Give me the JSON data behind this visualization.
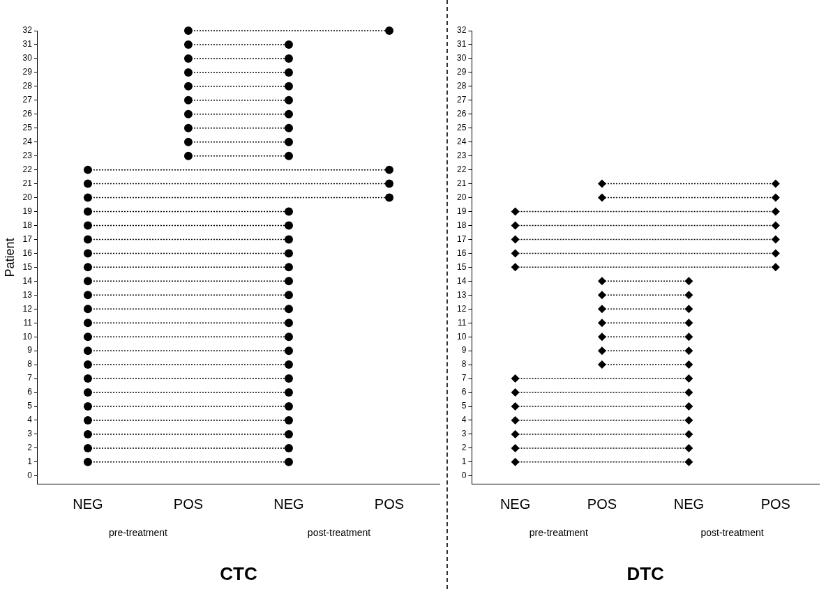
{
  "chart_data": [
    {
      "type": "line",
      "ylabel": "Patient",
      "xlabel": "CTC",
      "annotations": [
        "pre-treatment",
        "post-treatment"
      ],
      "line_style": "dotted",
      "marker": "circle",
      "categories": [
        "NEG",
        "POS",
        "NEG",
        "POS"
      ],
      "ylim": [
        -0.6,
        32
      ],
      "yticks": [
        0,
        1,
        2,
        3,
        4,
        5,
        6,
        7,
        8,
        9,
        10,
        11,
        12,
        13,
        14,
        15,
        16,
        17,
        18,
        19,
        20,
        21,
        22,
        23,
        24,
        25,
        26,
        27,
        28,
        29,
        30,
        31,
        32
      ],
      "series": [
        {
          "color": "#000000",
          "values": [
            1,
            null,
            1,
            null
          ]
        },
        {
          "color": "#000000",
          "values": [
            2,
            null,
            2,
            null
          ]
        },
        {
          "color": "#000000",
          "values": [
            3,
            null,
            3,
            null
          ]
        },
        {
          "color": "#000000",
          "values": [
            4,
            null,
            4,
            null
          ]
        },
        {
          "color": "#000000",
          "values": [
            5,
            null,
            5,
            null
          ]
        },
        {
          "color": "#000000",
          "values": [
            6,
            null,
            6,
            null
          ]
        },
        {
          "color": "#000000",
          "values": [
            7,
            null,
            7,
            null
          ]
        },
        {
          "color": "#000000",
          "values": [
            8,
            null,
            8,
            null
          ]
        },
        {
          "color": "#000000",
          "values": [
            9,
            null,
            9,
            null
          ]
        },
        {
          "color": "#000000",
          "values": [
            10,
            null,
            10,
            null
          ]
        },
        {
          "color": "#000000",
          "values": [
            11,
            null,
            11,
            null
          ]
        },
        {
          "color": "#000000",
          "values": [
            12,
            null,
            12,
            null
          ]
        },
        {
          "color": "#000000",
          "values": [
            13,
            null,
            13,
            null
          ]
        },
        {
          "color": "#000000",
          "values": [
            14,
            null,
            14,
            null
          ]
        },
        {
          "color": "#000000",
          "values": [
            15,
            null,
            15,
            null
          ]
        },
        {
          "color": "#000000",
          "values": [
            16,
            null,
            16,
            null
          ]
        },
        {
          "color": "#000000",
          "values": [
            17,
            null,
            17,
            null
          ]
        },
        {
          "color": "#000000",
          "values": [
            18,
            null,
            18,
            null
          ]
        },
        {
          "color": "#000000",
          "values": [
            19,
            null,
            19,
            null
          ]
        },
        {
          "color": "#000000",
          "values": [
            20,
            null,
            null,
            20
          ]
        },
        {
          "color": "#000000",
          "values": [
            21,
            null,
            null,
            21
          ]
        },
        {
          "color": "#000000",
          "values": [
            22,
            null,
            null,
            22
          ]
        },
        {
          "color": "#000000",
          "values": [
            null,
            23,
            23,
            null
          ]
        },
        {
          "color": "#000000",
          "values": [
            null,
            24,
            24,
            null
          ]
        },
        {
          "color": "#000000",
          "values": [
            null,
            25,
            25,
            null
          ]
        },
        {
          "color": "#000000",
          "values": [
            null,
            26,
            26,
            null
          ]
        },
        {
          "color": "#000000",
          "values": [
            null,
            27,
            27,
            null
          ]
        },
        {
          "color": "#000000",
          "values": [
            null,
            28,
            28,
            null
          ]
        },
        {
          "color": "#000000",
          "values": [
            null,
            29,
            29,
            null
          ]
        },
        {
          "color": "#000000",
          "values": [
            null,
            30,
            30,
            null
          ]
        },
        {
          "color": "#000000",
          "values": [
            null,
            31,
            31,
            null
          ]
        },
        {
          "color": "#000000",
          "values": [
            null,
            32,
            null,
            32
          ]
        }
      ]
    },
    {
      "type": "line",
      "xlabel": "DTC",
      "annotations": [
        "pre-treatment",
        "post-treatment"
      ],
      "line_style": "dotted",
      "marker": "diamond",
      "categories": [
        "NEG",
        "POS",
        "NEG",
        "POS"
      ],
      "ylim": [
        -0.6,
        32
      ],
      "yticks": [
        0,
        1,
        2,
        3,
        4,
        5,
        6,
        7,
        8,
        9,
        10,
        11,
        12,
        13,
        14,
        15,
        16,
        17,
        18,
        19,
        20,
        21,
        22,
        23,
        24,
        25,
        26,
        27,
        28,
        29,
        30,
        31,
        32
      ],
      "series": [
        {
          "color": "#000000",
          "values": [
            1,
            null,
            1,
            null
          ]
        },
        {
          "color": "#000000",
          "values": [
            2,
            null,
            2,
            null
          ]
        },
        {
          "color": "#000000",
          "values": [
            3,
            null,
            3,
            null
          ]
        },
        {
          "color": "#000000",
          "values": [
            4,
            null,
            4,
            null
          ]
        },
        {
          "color": "#000000",
          "values": [
            5,
            null,
            5,
            null
          ]
        },
        {
          "color": "#000000",
          "values": [
            6,
            null,
            6,
            null
          ]
        },
        {
          "color": "#000000",
          "values": [
            7,
            null,
            7,
            null
          ]
        },
        {
          "color": "#000000",
          "values": [
            null,
            8,
            8,
            null
          ]
        },
        {
          "color": "#000000",
          "values": [
            null,
            9,
            9,
            null
          ]
        },
        {
          "color": "#000000",
          "values": [
            null,
            10,
            10,
            null
          ]
        },
        {
          "color": "#000000",
          "values": [
            null,
            11,
            11,
            null
          ]
        },
        {
          "color": "#000000",
          "values": [
            null,
            12,
            12,
            null
          ]
        },
        {
          "color": "#000000",
          "values": [
            null,
            13,
            13,
            null
          ]
        },
        {
          "color": "#000000",
          "values": [
            null,
            14,
            14,
            null
          ]
        },
        {
          "color": "#000000",
          "values": [
            15,
            null,
            null,
            15
          ]
        },
        {
          "color": "#000000",
          "values": [
            16,
            null,
            null,
            16
          ]
        },
        {
          "color": "#000000",
          "values": [
            17,
            null,
            null,
            17
          ]
        },
        {
          "color": "#000000",
          "values": [
            18,
            null,
            null,
            18
          ]
        },
        {
          "color": "#000000",
          "values": [
            19,
            null,
            null,
            19
          ]
        },
        {
          "color": "#000000",
          "values": [
            null,
            20,
            null,
            20
          ]
        },
        {
          "color": "#000000",
          "values": [
            null,
            21,
            null,
            21
          ]
        }
      ]
    }
  ]
}
